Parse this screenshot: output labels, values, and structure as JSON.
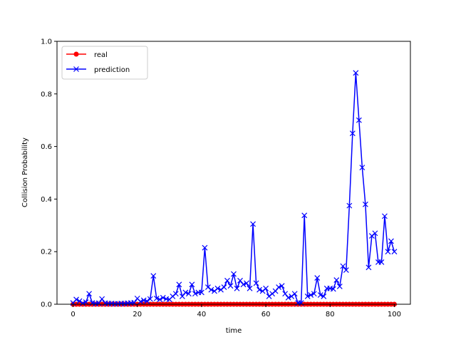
{
  "chart_data": {
    "type": "line",
    "xlabel": "time",
    "ylabel": "Collision Probability",
    "xlim": [
      -5,
      105
    ],
    "ylim": [
      0,
      1.0
    ],
    "x_ticks": [
      0,
      20,
      40,
      60,
      80,
      100
    ],
    "y_ticks": [
      0.0,
      0.2,
      0.4,
      0.6,
      0.8,
      1.0
    ],
    "x_tick_labels": [
      "0",
      "20",
      "40",
      "60",
      "80",
      "100"
    ],
    "y_tick_labels": [
      "0.0",
      "0.2",
      "0.4",
      "0.6",
      "0.8",
      "1.0"
    ],
    "grid": false,
    "legend_position": "upper-left",
    "x": [
      0,
      1,
      2,
      3,
      4,
      5,
      6,
      7,
      8,
      9,
      10,
      11,
      12,
      13,
      14,
      15,
      16,
      17,
      18,
      19,
      20,
      21,
      22,
      23,
      24,
      25,
      26,
      27,
      28,
      29,
      30,
      31,
      32,
      33,
      34,
      35,
      36,
      37,
      38,
      39,
      40,
      41,
      42,
      43,
      44,
      45,
      46,
      47,
      48,
      49,
      50,
      51,
      52,
      53,
      54,
      55,
      56,
      57,
      58,
      59,
      60,
      61,
      62,
      63,
      64,
      65,
      66,
      67,
      68,
      69,
      70,
      71,
      72,
      73,
      74,
      75,
      76,
      77,
      78,
      79,
      80,
      81,
      82,
      83,
      84,
      85,
      86,
      87,
      88,
      89,
      90,
      91,
      92,
      93,
      94,
      95,
      96,
      97,
      98,
      99,
      100
    ],
    "series": [
      {
        "name": "real",
        "color": "#ff0000",
        "marker": "circle",
        "values": [
          0,
          0,
          0,
          0,
          0,
          0,
          0,
          0,
          0,
          0,
          0,
          0,
          0,
          0,
          0,
          0,
          0,
          0,
          0,
          0,
          0,
          0,
          0,
          0,
          0,
          0,
          0,
          0,
          0,
          0,
          0,
          0,
          0,
          0,
          0,
          0,
          0,
          0,
          0,
          0,
          0,
          0,
          0,
          0,
          0,
          0,
          0,
          0,
          0,
          0,
          0,
          0,
          0,
          0,
          0,
          0,
          0,
          0,
          0,
          0,
          0,
          0,
          0,
          0,
          0,
          0,
          0,
          0,
          0,
          0,
          0,
          0,
          0,
          0,
          0,
          0,
          0,
          0,
          0,
          0,
          0,
          0,
          0,
          0,
          0,
          0,
          0,
          0,
          0,
          0,
          0,
          0,
          0,
          0,
          0,
          0,
          0,
          0,
          0,
          0,
          0
        ]
      },
      {
        "name": "prediction",
        "color": "#0000ff",
        "marker": "x",
        "values": [
          0.005,
          0.018,
          0.012,
          0.004,
          0.008,
          0.04,
          0.005,
          0.003,
          0.004,
          0.02,
          0.004,
          0.003,
          0.003,
          0.002,
          0.002,
          0.003,
          0.003,
          0.004,
          0.005,
          0.006,
          0.022,
          0.01,
          0.015,
          0.012,
          0.02,
          0.108,
          0.022,
          0.018,
          0.025,
          0.02,
          0.018,
          0.03,
          0.04,
          0.075,
          0.03,
          0.045,
          0.04,
          0.075,
          0.04,
          0.045,
          0.045,
          0.215,
          0.065,
          0.055,
          0.05,
          0.06,
          0.055,
          0.065,
          0.09,
          0.07,
          0.115,
          0.06,
          0.09,
          0.075,
          0.08,
          0.06,
          0.305,
          0.08,
          0.055,
          0.05,
          0.06,
          0.03,
          0.04,
          0.05,
          0.065,
          0.07,
          0.04,
          0.025,
          0.03,
          0.04,
          0.005,
          0.005,
          0.338,
          0.03,
          0.035,
          0.04,
          0.1,
          0.035,
          0.03,
          0.06,
          0.06,
          0.058,
          0.092,
          0.068,
          0.145,
          0.13,
          0.375,
          0.65,
          0.88,
          0.7,
          0.52,
          0.38,
          0.14,
          0.26,
          0.27,
          0.16,
          0.16,
          0.335,
          0.2,
          0.24,
          0.2
        ]
      }
    ]
  }
}
